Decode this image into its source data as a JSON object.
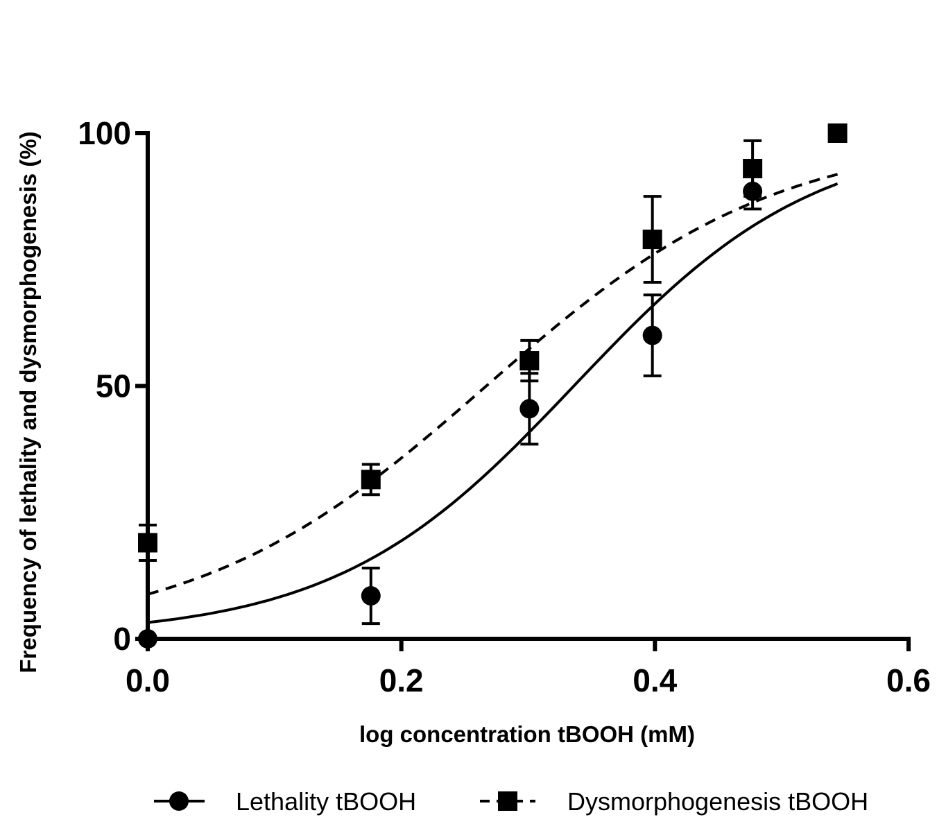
{
  "chart_data": {
    "type": "scatter",
    "xlabel": "log concentration tBOOH (mM)",
    "ylabel": "Frequency of lethality and dysmorphogenesis (%)",
    "xlim": [
      0,
      0.6
    ],
    "ylim": [
      0,
      100
    ],
    "x_ticks": [
      "0.0",
      "0.2",
      "0.4",
      "0.6"
    ],
    "y_ticks": [
      "0",
      "50",
      "100"
    ],
    "grid": false,
    "legend_position": "bottom",
    "series": [
      {
        "name": "Lethality tBOOH",
        "marker": "circle",
        "line_style": "solid",
        "color": "#000000",
        "points": [
          {
            "x": 0.0,
            "y": 0,
            "err": 0
          },
          {
            "x": 0.176,
            "y": 8.5,
            "err": 5.5
          },
          {
            "x": 0.301,
            "y": 45.5,
            "err": 7
          },
          {
            "x": 0.398,
            "y": 60,
            "err": 8
          },
          {
            "x": 0.477,
            "y": 88.5,
            "err": 3.5
          }
        ],
        "fit_curve": {
          "bottom": 0.5,
          "top": 100,
          "logEC50": 0.337,
          "hillslope": 4.6,
          "x_range": [
            0.0,
            0.544
          ]
        }
      },
      {
        "name": "Dysmorphogenesis tBOOH",
        "marker": "square",
        "line_style": "dashed",
        "color": "#000000",
        "points": [
          {
            "x": 0.0,
            "y": 19,
            "err": 3.5
          },
          {
            "x": 0.176,
            "y": 31.5,
            "err": 3
          },
          {
            "x": 0.301,
            "y": 55,
            "err": 4
          },
          {
            "x": 0.398,
            "y": 79,
            "err": 8.5
          },
          {
            "x": 0.477,
            "y": 93,
            "err": 5.5
          },
          {
            "x": 0.544,
            "y": 100,
            "err": 0
          }
        ],
        "fit_curve": {
          "bottom": 0,
          "top": 100,
          "logEC50": 0.267,
          "hillslope": 3.8,
          "x_range": [
            0.0,
            0.544
          ]
        }
      }
    ]
  }
}
